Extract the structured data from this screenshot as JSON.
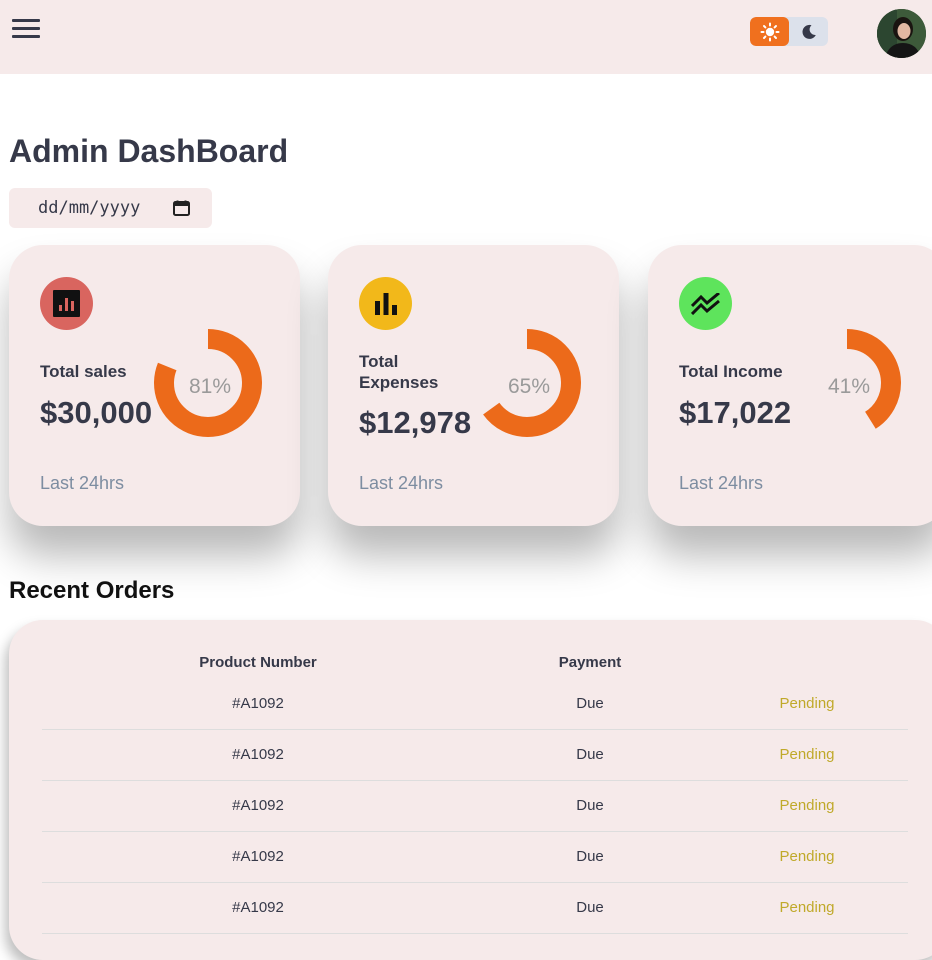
{
  "topbar": {
    "menu_icon": "hamburger-icon",
    "theme_light_icon": "sun-icon",
    "theme_dark_icon": "moon-icon",
    "accent_color": "#f0701e"
  },
  "page": {
    "title": "Admin DashBoard",
    "date_placeholder": "dd/mm/yyyy"
  },
  "cards": [
    {
      "label": "Total sales",
      "amount": "$30,000",
      "percent": "81%",
      "percent_value": 81,
      "footer": "Last 24hrs",
      "icon": "analytics-icon",
      "icon_color": "#d9655f"
    },
    {
      "label": "Total Expenses",
      "amount": "$12,978",
      "percent": "65%",
      "percent_value": 65,
      "footer": "Last 24hrs",
      "icon": "bar-chart-icon",
      "icon_color": "#f2b81a"
    },
    {
      "label": "Total Income",
      "amount": "$17,022",
      "percent": "41%",
      "percent_value": 41,
      "footer": "Last 24hrs",
      "icon": "stacked-line-chart-icon",
      "icon_color": "#5ee45c"
    }
  ],
  "orders": {
    "title": "Recent Orders",
    "headers": [
      "Product Number",
      "Payment",
      ""
    ],
    "rows": [
      {
        "product": "#A1092",
        "payment": "Due",
        "status": "Pending"
      },
      {
        "product": "#A1092",
        "payment": "Due",
        "status": "Pending"
      },
      {
        "product": "#A1092",
        "payment": "Due",
        "status": "Pending"
      },
      {
        "product": "#A1092",
        "payment": "Due",
        "status": "Pending"
      },
      {
        "product": "#A1092",
        "payment": "Due",
        "status": "Pending"
      }
    ]
  }
}
